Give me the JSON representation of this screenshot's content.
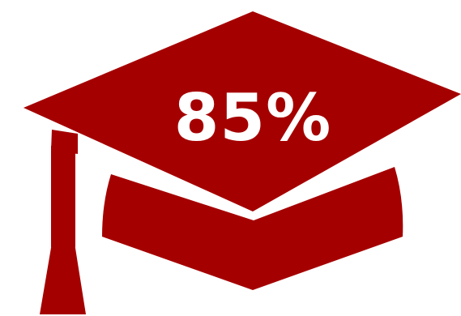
{
  "statistic": {
    "value_label": "85%",
    "value": 85
  },
  "icon": {
    "name": "graduation-cap-icon"
  },
  "colors": {
    "cap": "#a50000",
    "text": "#ffffff",
    "background": "#ffffff"
  }
}
